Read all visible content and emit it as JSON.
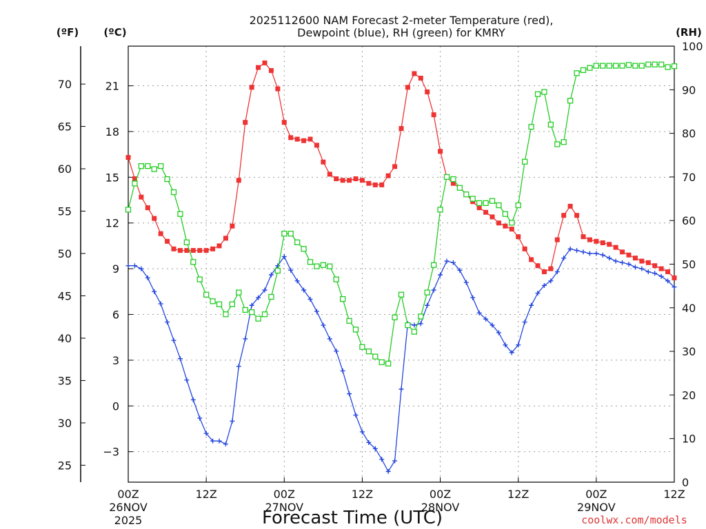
{
  "chart_data": {
    "type": "line",
    "title": "2025112600 NAM Forecast 2-meter Temperature (red),",
    "subtitle": "Dewpoint (blue), RH (green) for KMRY",
    "xlabel": "Forecast Time (UTC)",
    "left_units_f": "(ºF)",
    "left_units_c": "(ºC)",
    "right_units": "(RH)",
    "credit": "coolwx.com/models",
    "x_ticks": [
      {
        "h": 0,
        "label": "00Z",
        "sub1": "26NOV",
        "sub2": "2025"
      },
      {
        "h": 12,
        "label": "12Z",
        "sub1": "",
        "sub2": ""
      },
      {
        "h": 24,
        "label": "00Z",
        "sub1": "27NOV",
        "sub2": ""
      },
      {
        "h": 36,
        "label": "12Z",
        "sub1": "",
        "sub2": ""
      },
      {
        "h": 48,
        "label": "00Z",
        "sub1": "28NOV",
        "sub2": ""
      },
      {
        "h": 60,
        "label": "12Z",
        "sub1": "",
        "sub2": ""
      },
      {
        "h": 72,
        "label": "00Z",
        "sub1": "29NOV",
        "sub2": ""
      },
      {
        "h": 84,
        "label": "12Z",
        "sub1": "",
        "sub2": ""
      }
    ],
    "x_range_hours": [
      0,
      84
    ],
    "f_ticks": [
      25,
      30,
      35,
      40,
      45,
      50,
      55,
      60,
      65,
      70
    ],
    "c_ticks": [
      -3,
      0,
      3,
      6,
      9,
      12,
      15,
      18,
      21
    ],
    "rh_ticks": [
      0,
      10,
      20,
      30,
      40,
      50,
      60,
      70,
      80,
      90,
      100
    ],
    "temp_range_c": [
      -5.0,
      23.6
    ],
    "rh_range": [
      0,
      100
    ],
    "grid": true,
    "series": [
      {
        "name": "Temperature",
        "units": "°C",
        "color": "#ee3333",
        "marker": "filled-square",
        "axis": "temp",
        "values": [
          16.3,
          14.9,
          13.7,
          13.0,
          12.3,
          11.3,
          10.8,
          10.3,
          10.2,
          10.2,
          10.2,
          10.2,
          10.2,
          10.3,
          10.5,
          11.0,
          11.8,
          14.8,
          18.6,
          20.9,
          22.2,
          22.5,
          22.0,
          20.8,
          18.6,
          17.6,
          17.5,
          17.4,
          17.5,
          17.1,
          16.0,
          15.2,
          14.9,
          14.8,
          14.8,
          14.9,
          14.8,
          14.6,
          14.5,
          14.5,
          15.1,
          15.7,
          18.2,
          20.9,
          21.8,
          21.5,
          20.6,
          19.1,
          16.7,
          15.0,
          14.6,
          14.3,
          13.9,
          13.4,
          13.0,
          12.7,
          12.4,
          12.0,
          11.8,
          11.6,
          11.1,
          10.3,
          9.6,
          9.2,
          8.8,
          9.0,
          10.9,
          12.5,
          13.1,
          12.5,
          11.1,
          10.9,
          10.8,
          10.7,
          10.6,
          10.4,
          10.1,
          9.9,
          9.7,
          9.5,
          9.4,
          9.2,
          9.0,
          8.8,
          8.4
        ]
      },
      {
        "name": "Dewpoint",
        "units": "°C",
        "color": "#2244dd",
        "marker": "plus",
        "axis": "temp",
        "values": [
          9.2,
          9.2,
          9.0,
          8.4,
          7.5,
          6.7,
          5.5,
          4.3,
          3.1,
          1.7,
          0.4,
          -0.8,
          -1.8,
          -2.3,
          -2.3,
          -2.5,
          -1.0,
          2.6,
          4.4,
          6.6,
          7.1,
          7.6,
          8.6,
          9.2,
          9.8,
          8.9,
          8.2,
          7.6,
          7.0,
          6.2,
          5.3,
          4.4,
          3.6,
          2.3,
          0.8,
          -0.6,
          -1.7,
          -2.4,
          -2.8,
          -3.5,
          -4.3,
          -3.6,
          1.1,
          5.4,
          5.3,
          5.4,
          6.6,
          7.6,
          8.6,
          9.5,
          9.4,
          8.9,
          8.1,
          7.1,
          6.1,
          5.7,
          5.3,
          4.8,
          4.0,
          3.5,
          4.0,
          5.5,
          6.6,
          7.4,
          7.9,
          8.2,
          8.8,
          9.7,
          10.3,
          10.2,
          10.1,
          10.0,
          10.0,
          9.9,
          9.7,
          9.5,
          9.4,
          9.3,
          9.1,
          9.0,
          8.8,
          8.7,
          8.5,
          8.2,
          7.8
        ]
      },
      {
        "name": "RH",
        "units": "%",
        "color": "#22cc22",
        "marker": "open-square",
        "axis": "rh",
        "values": [
          62.5,
          68.5,
          72.5,
          72.5,
          71.8,
          72.5,
          69.5,
          66.5,
          61.5,
          55.0,
          50.5,
          46.5,
          43.0,
          41.5,
          40.8,
          38.5,
          40.8,
          43.5,
          39.5,
          39.0,
          37.5,
          38.5,
          42.5,
          48.5,
          57.0,
          57.0,
          55.0,
          53.5,
          50.5,
          49.5,
          49.8,
          49.5,
          46.5,
          42.0,
          37.0,
          35.0,
          31.0,
          30.0,
          28.8,
          27.5,
          27.2,
          37.8,
          43.0,
          36.0,
          34.5,
          38.0,
          43.5,
          49.8,
          62.5,
          70.0,
          69.5,
          67.5,
          66.0,
          65.0,
          64.0,
          64.0,
          64.5,
          63.5,
          61.5,
          59.5,
          63.5,
          73.5,
          81.5,
          89.0,
          89.5,
          82.0,
          77.5,
          78.0,
          87.5,
          93.8,
          94.5,
          95.0,
          95.5,
          95.5,
          95.5,
          95.5,
          95.5,
          95.7,
          95.5,
          95.5,
          95.8,
          95.8,
          95.8,
          95.2,
          95.4
        ]
      }
    ]
  }
}
